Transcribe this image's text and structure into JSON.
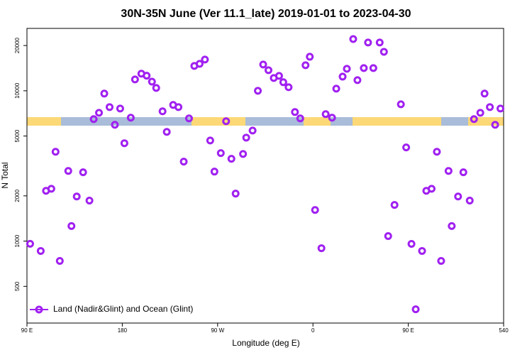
{
  "chart_data": {
    "type": "scatter",
    "title": "30N-35N June (Ver 11.1_late)   2019-01-01 to 2023-04-30",
    "xlabel": "Longitude (deg E)",
    "ylabel": "N Total",
    "x": [
      93,
      103,
      108,
      113,
      117,
      121,
      129,
      132,
      137,
      143,
      149,
      153,
      158,
      163,
      168,
      173,
      178,
      182,
      188,
      192,
      198,
      203,
      208,
      212,
      218,
      222,
      228,
      233,
      238,
      243,
      248,
      253,
      258,
      263,
      267,
      273,
      278,
      283,
      287,
      294,
      297,
      303,
      308,
      313,
      318,
      323,
      328,
      332,
      337,
      343,
      348,
      353,
      357,
      362,
      368,
      372,
      378,
      382,
      388,
      392,
      398,
      402,
      408,
      412,
      417,
      423,
      427,
      431,
      437,
      443,
      448,
      453,
      457,
      463,
      467,
      472,
      477,
      481,
      488,
      491,
      497,
      502,
      508,
      512,
      518,
      522,
      527,
      532,
      537
    ],
    "series": [
      {
        "name": "Land (Nadir&Glint) and Ocean (Glint)",
        "color": "#a020f0",
        "values": [
          960,
          860,
          2160,
          2230,
          3930,
          738,
          2930,
          1260,
          1980,
          2870,
          1860,
          6480,
          7140,
          9580,
          7790,
          5940,
          7620,
          4480,
          6620,
          11900,
          13000,
          12600,
          11500,
          10440,
          7300,
          5330,
          8050,
          7790,
          3380,
          6550,
          14630,
          15110,
          16140,
          4670,
          2900,
          3850,
          6270,
          3530,
          2070,
          3800,
          4880,
          5440,
          10000,
          14950,
          13700,
          12160,
          12560,
          11400,
          10560,
          7220,
          6550,
          14790,
          16840,
          1610,
          897,
          6990,
          6620,
          10330,
          12420,
          14000,
          22090,
          11770,
          14160,
          20940,
          14160,
          20940,
          18170,
          1080,
          1740,
          8130,
          4200,
          958,
          352,
          860,
          2160,
          2230,
          3930,
          738,
          2930,
          1260,
          1980,
          2870,
          1860,
          6480,
          7140,
          9580,
          7790,
          5940,
          7620
        ]
      }
    ],
    "xlim": [
      90,
      540
    ],
    "xticks": [
      {
        "value": 90,
        "label": "90 E"
      },
      180,
      {
        "value": 270,
        "label": "90 W"
      },
      {
        "value": 360,
        "label": "0"
      },
      {
        "value": 450,
        "label": "90 E"
      },
      540
    ],
    "ylim": [
      285,
      26000
    ],
    "yticks": [
      500,
      1000,
      2000,
      5000,
      10000,
      20000
    ],
    "ylog": true,
    "legend": "bottom-left"
  }
}
